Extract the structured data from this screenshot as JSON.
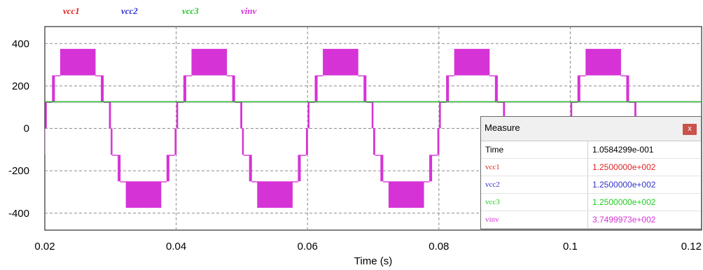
{
  "colors": {
    "vcc1": "#e02424",
    "vcc2": "#3333cc",
    "vcc3": "#22cc22",
    "vinv": "#d633d6"
  },
  "legend": [
    {
      "label": "vcc1",
      "color": "#e02424"
    },
    {
      "label": "vcc2",
      "color": "#3333cc"
    },
    {
      "label": "vcc3",
      "color": "#22cc22"
    },
    {
      "label": "vinv",
      "color": "#d633d6"
    }
  ],
  "chart_data": {
    "type": "line",
    "xlabel": "Time (s)",
    "ylabel": "",
    "xlim": [
      0.02,
      0.12
    ],
    "ylim": [
      -480,
      480
    ],
    "xticks": [
      0.02,
      0.04,
      0.06,
      0.08,
      0.1,
      0.12
    ],
    "xtick_labels": [
      "0.02",
      "0.04",
      "0.06",
      "0.08",
      "0.1",
      "0.12"
    ],
    "yticks": [
      -400,
      -200,
      0,
      200,
      400
    ],
    "ytick_labels": [
      "-400",
      "-200",
      "0",
      "200",
      "400"
    ],
    "grid": true,
    "legend_position": "top-left",
    "fundamental_frequency_hz": 50,
    "series": [
      {
        "name": "vcc1",
        "dc_value": 125
      },
      {
        "name": "vcc2",
        "dc_value": 125
      },
      {
        "name": "vcc3",
        "dc_value": 125
      },
      {
        "name": "vinv",
        "waveform": "7-level staircase PWM",
        "levels": [
          -375,
          -250,
          -125,
          0,
          125,
          250,
          375
        ],
        "level_upper_thresholds": [
          0.0,
          0.333,
          0.667,
          0.94
        ],
        "period": 0.02
      }
    ]
  },
  "measure": {
    "title": "Measure",
    "close_label": "x",
    "rows": [
      {
        "name": "Time",
        "value": "1.0584299e-001",
        "color": "#000000"
      },
      {
        "name": "vcc1",
        "value": "1.2500000e+002",
        "color": "#e02424"
      },
      {
        "name": "vcc2",
        "value": "1.2500000e+002",
        "color": "#3333cc"
      },
      {
        "name": "vcc3",
        "value": "1.2500000e+002",
        "color": "#22cc22"
      },
      {
        "name": "vinv",
        "value": "3.7499973e+002",
        "color": "#d633d6"
      }
    ]
  }
}
